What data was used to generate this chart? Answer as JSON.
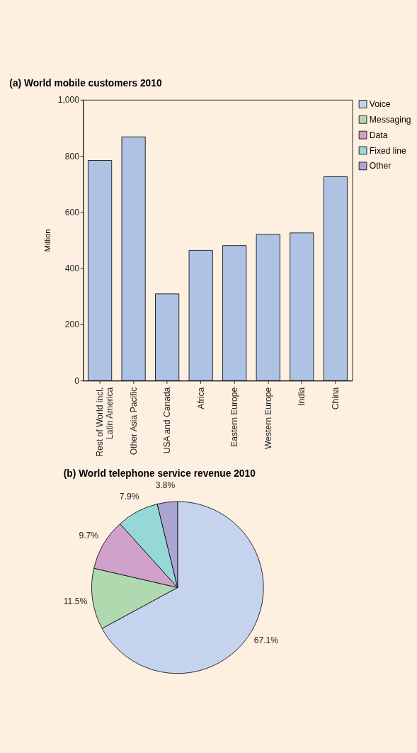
{
  "chart_data": [
    {
      "type": "bar",
      "title": "(a) World mobile customers 2010",
      "ylabel": "Million",
      "categories": [
        "Rest of World incl.\nLatin America",
        "Other Asia Pacific",
        "USA and Canada",
        "Africa",
        "Eastern Europe",
        "Western Europe",
        "India",
        "China"
      ],
      "values": [
        784,
        868,
        309,
        464,
        481,
        521,
        526,
        726
      ],
      "color": "#aec3e4",
      "ylim": [
        0,
        1000
      ],
      "yticks": [
        0,
        200,
        400,
        600,
        800,
        {
          "value": 1000,
          "label": "1,000"
        }
      ],
      "grid": false
    },
    {
      "type": "pie",
      "title": "(b) World telephone service revenue 2010",
      "categories": [
        "Voice",
        "Messaging",
        "Data",
        "Fixed line",
        "Other"
      ],
      "values": [
        67.1,
        11.5,
        9.7,
        7.9,
        3.8
      ],
      "colors": [
        "#c5d3ee",
        "#afd9ae",
        "#d0a2cb",
        "#96d8d8",
        "#a9a5d3"
      ],
      "value_labels": [
        "67.1%",
        "11.5%",
        "9.7%",
        "7.9%",
        "3.8%"
      ],
      "legend": "right"
    }
  ]
}
